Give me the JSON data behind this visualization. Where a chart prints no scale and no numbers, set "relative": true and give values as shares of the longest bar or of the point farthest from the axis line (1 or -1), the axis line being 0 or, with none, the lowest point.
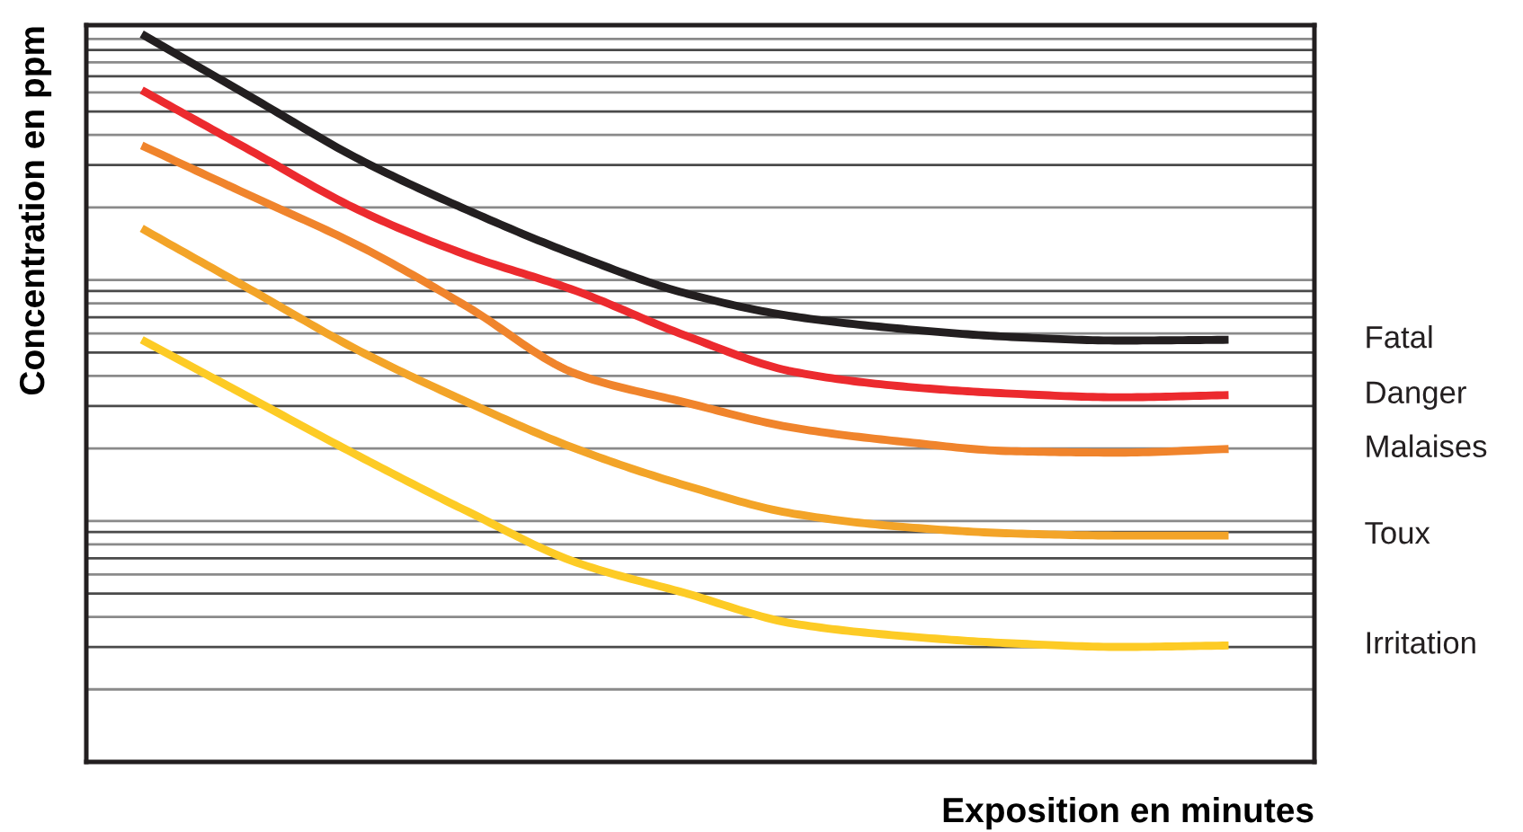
{
  "chart_data": {
    "type": "line",
    "relative": true,
    "xlabel": "Exposition en minutes",
    "ylabel": "Concentration en ppm",
    "categories": [
      null,
      null,
      null,
      null,
      null,
      null,
      null,
      null,
      null,
      null,
      null
    ],
    "grid": "y",
    "legend": false,
    "marker": "none",
    "line_style": "solid",
    "series": [
      {
        "name": "Fatal",
        "color": "#231f20",
        "values": [
          1.0,
          0.914,
          0.828,
          0.758,
          0.696,
          0.644,
          0.612,
          0.595,
          0.584,
          0.579,
          0.58
        ]
      },
      {
        "name": "Danger",
        "color": "#ec2a2e",
        "values": [
          0.923,
          0.84,
          0.758,
          0.696,
          0.647,
          0.586,
          0.536,
          0.516,
          0.506,
          0.501,
          0.504
        ]
      },
      {
        "name": "Malaises",
        "color": "#f0842c",
        "values": [
          0.847,
          0.778,
          0.709,
          0.625,
          0.533,
          0.494,
          0.459,
          0.44,
          0.427,
          0.425,
          0.43
        ]
      },
      {
        "name": "Toux",
        "color": "#f3a428",
        "values": [
          0.733,
          0.649,
          0.565,
          0.494,
          0.43,
          0.38,
          0.341,
          0.323,
          0.314,
          0.311,
          0.311
        ]
      },
      {
        "name": "Irritation",
        "color": "#fdcb25",
        "values": [
          0.58,
          0.5,
          0.42,
          0.344,
          0.274,
          0.232,
          0.19,
          0.173,
          0.163,
          0.158,
          0.16
        ]
      }
    ]
  }
}
